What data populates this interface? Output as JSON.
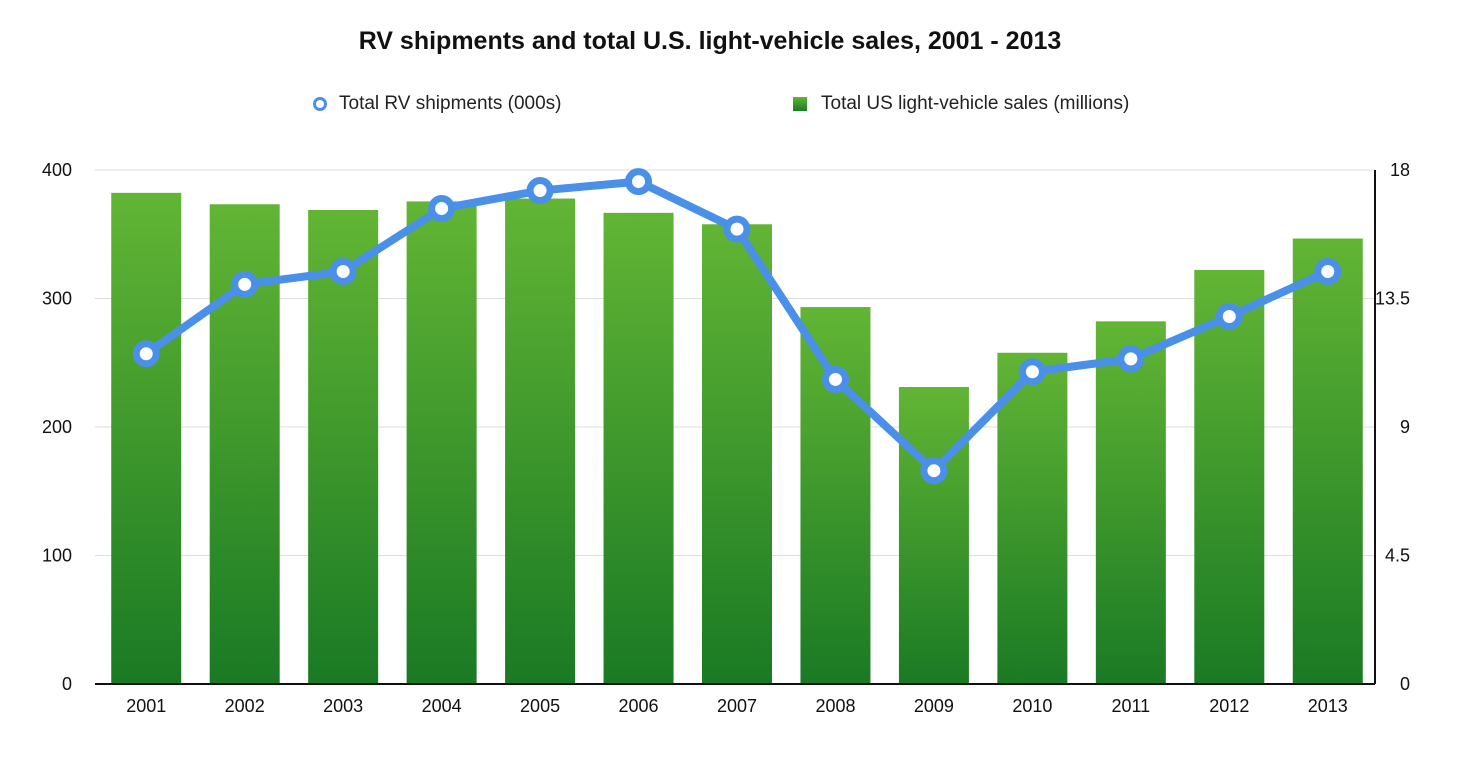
{
  "chart_data": {
    "type": "bar+line",
    "title": "RV shipments and total U.S. light-vehicle sales, 2001 - 2013",
    "categories": [
      "2001",
      "2002",
      "2003",
      "2004",
      "2005",
      "2006",
      "2007",
      "2008",
      "2009",
      "2010",
      "2011",
      "2012",
      "2013"
    ],
    "series": [
      {
        "name": "Total US light-vehicle sales (millions)",
        "type": "bar",
        "axis": "right",
        "values": [
          17.2,
          16.8,
          16.6,
          16.9,
          17.0,
          16.5,
          16.1,
          13.2,
          10.4,
          11.6,
          12.7,
          14.5,
          15.6
        ]
      },
      {
        "name": "Total RV shipments (000s)",
        "type": "line",
        "axis": "left",
        "values": [
          257,
          311,
          321,
          370,
          384,
          391,
          354,
          237,
          166,
          243,
          253,
          286,
          321
        ]
      }
    ],
    "yleft": {
      "ylim": [
        0,
        400
      ],
      "ticks": [
        "0",
        "100",
        "200",
        "300",
        "400"
      ],
      "tick_values": [
        0,
        100,
        200,
        300,
        400
      ]
    },
    "yright": {
      "ylim": [
        0,
        18
      ],
      "ticks": [
        "0",
        "4.5",
        "9",
        "13.5",
        "18"
      ],
      "tick_values": [
        0,
        4.5,
        9,
        13.5,
        18
      ]
    },
    "xlabel": "",
    "ylabel": "",
    "legend": {
      "position": "top",
      "entries": [
        "Total RV shipments (000s)",
        "Total US light-vehicle sales (millions)"
      ]
    },
    "grid": true,
    "colors": {
      "bar_top": "#62b534",
      "bar_bottom": "#1a7a24",
      "line": "#4a90e8",
      "grid": "#dddddd",
      "axis": "#111111"
    }
  }
}
